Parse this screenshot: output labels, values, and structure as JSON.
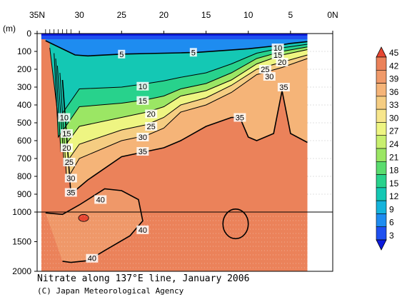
{
  "chart_data": {
    "type": "heatmap",
    "title": "Nitrate along 137°E line, January 2006",
    "credit": "(C) Japan Meteorological Agency",
    "ylabel": "(m)",
    "x_ticks": [
      "35N",
      "30",
      "25",
      "20",
      "15",
      "10",
      "5",
      "0N"
    ],
    "x_tick_values": [
      35,
      30,
      25,
      20,
      15,
      10,
      5,
      0
    ],
    "y_ticks_upper": [
      "0",
      "100",
      "200",
      "300",
      "400",
      "500",
      "600",
      "700",
      "800",
      "900",
      "1000"
    ],
    "y_ticks_upper_values": [
      0,
      100,
      200,
      300,
      400,
      500,
      600,
      700,
      800,
      900,
      1000
    ],
    "y_ticks_lower": [
      "1500",
      "2000"
    ],
    "y_ticks_lower_values": [
      1500,
      2000
    ],
    "xlim": [
      35,
      0
    ],
    "ylim": [
      0,
      2000
    ],
    "data_extent_lat": [
      34.5,
      3
    ],
    "colorbar_labels": [
      "45",
      "42",
      "39",
      "36",
      "33",
      "30",
      "27",
      "24",
      "21",
      "18",
      "15",
      "12",
      "9",
      "6",
      "3"
    ],
    "colorbar_values": [
      45,
      42,
      39,
      36,
      33,
      30,
      27,
      24,
      21,
      18,
      15,
      12,
      9,
      6,
      3
    ],
    "colors": {
      "c0": "#0c1adc",
      "c3": "#1e50f0",
      "c6": "#1e8cf0",
      "c9": "#14b4dc",
      "c12": "#14c8b4",
      "c15": "#28d28c",
      "c18": "#5adc6e",
      "c21": "#9be664",
      "c24": "#c8ef6e",
      "c27": "#eef582",
      "c30": "#f7e68c",
      "c33": "#f5cd82",
      "c36": "#f5b478",
      "c39": "#f09a6a",
      "c42": "#eb825a",
      "c45": "#e64632",
      "frame": "#000000",
      "background": "#ffffff"
    },
    "contours": [
      {
        "level": 5,
        "label": "5",
        "points": [
          [
            34,
            40
          ],
          [
            30.5,
            120
          ],
          [
            29,
            125
          ],
          [
            25,
            115
          ],
          [
            22,
            112
          ],
          [
            20,
            110
          ],
          [
            18,
            108
          ],
          [
            16,
            105
          ],
          [
            13,
            95
          ],
          [
            10,
            85
          ],
          [
            7,
            70
          ],
          [
            5,
            55
          ],
          [
            3,
            45
          ]
        ]
      },
      {
        "level": 10,
        "label": "10",
        "points": [
          [
            33.5,
            80
          ],
          [
            32.5,
            480
          ],
          [
            30,
            310
          ],
          [
            25,
            300
          ],
          [
            22,
            280
          ],
          [
            20,
            265
          ],
          [
            18,
            245
          ],
          [
            15,
            220
          ],
          [
            12,
            170
          ],
          [
            9,
            110
          ],
          [
            6,
            80
          ],
          [
            3,
            60
          ]
        ]
      },
      {
        "level": 15,
        "label": "15",
        "points": [
          [
            33,
            110
          ],
          [
            32.5,
            580
          ],
          [
            30,
            410
          ],
          [
            25,
            390
          ],
          [
            22,
            370
          ],
          [
            20,
            350
          ],
          [
            18,
            310
          ],
          [
            15,
            280
          ],
          [
            12,
            220
          ],
          [
            9,
            140
          ],
          [
            6,
            100
          ],
          [
            3,
            75
          ]
        ]
      },
      {
        "level": 20,
        "label": "20",
        "points": [
          [
            32.8,
            140
          ],
          [
            32.2,
            660
          ],
          [
            30,
            520
          ],
          [
            25,
            470
          ],
          [
            22,
            440
          ],
          [
            20,
            410
          ],
          [
            18,
            350
          ],
          [
            15,
            320
          ],
          [
            12,
            260
          ],
          [
            9,
            170
          ],
          [
            6,
            120
          ],
          [
            3,
            90
          ]
        ]
      },
      {
        "level": 25,
        "label": "25",
        "points": [
          [
            32.6,
            180
          ],
          [
            31.8,
            740
          ],
          [
            30,
            620
          ],
          [
            25,
            540
          ],
          [
            22,
            510
          ],
          [
            20,
            470
          ],
          [
            18,
            400
          ],
          [
            15,
            360
          ],
          [
            12,
            290
          ],
          [
            9,
            200
          ],
          [
            6,
            160
          ],
          [
            3,
            120
          ]
        ]
      },
      {
        "level": 30,
        "label": "30",
        "points": [
          [
            32.3,
            220
          ],
          [
            31.5,
            820
          ],
          [
            30,
            700
          ],
          [
            25,
            600
          ],
          [
            22,
            570
          ],
          [
            20,
            530
          ],
          [
            18,
            440
          ],
          [
            15,
            400
          ],
          [
            12,
            330
          ],
          [
            9,
            230
          ],
          [
            6,
            190
          ],
          [
            3,
            140
          ]
        ]
      },
      {
        "level": 35,
        "label": "35",
        "points": [
          [
            32,
            260
          ],
          [
            31,
            900
          ],
          [
            29,
            820
          ],
          [
            25,
            690
          ],
          [
            22,
            660
          ],
          [
            20,
            640
          ],
          [
            18,
            600
          ],
          [
            15,
            520
          ],
          [
            12,
            470
          ],
          [
            11,
            470
          ],
          [
            10,
            580
          ],
          [
            9,
            600
          ],
          [
            7,
            560
          ],
          [
            6,
            320
          ],
          [
            5,
            560
          ],
          [
            3,
            610
          ]
        ]
      },
      {
        "level": 40,
        "label": "40",
        "points": [
          [
            34,
            1015
          ],
          [
            32,
            1040
          ],
          [
            30,
            960
          ],
          [
            29,
            930
          ],
          [
            27,
            870
          ],
          [
            25,
            880
          ],
          [
            23,
            930
          ],
          [
            22.5,
            1150
          ],
          [
            24,
            1400
          ],
          [
            27,
            1650
          ],
          [
            29,
            1820
          ],
          [
            31,
            1850
          ],
          [
            32,
            1830
          ]
        ]
      }
    ],
    "contour_labels": [
      {
        "text": "5",
        "lat": 25,
        "depth": 115
      },
      {
        "text": "5",
        "lat": 16.5,
        "depth": 105
      },
      {
        "text": "10",
        "lat": 22.5,
        "depth": 295
      },
      {
        "text": "15",
        "lat": 22.5,
        "depth": 375
      },
      {
        "text": "20",
        "lat": 21.5,
        "depth": 450
      },
      {
        "text": "25",
        "lat": 21.5,
        "depth": 520
      },
      {
        "text": "30",
        "lat": 22.5,
        "depth": 580
      },
      {
        "text": "35",
        "lat": 22.5,
        "depth": 660
      },
      {
        "text": "10",
        "lat": 31.8,
        "depth": 470
      },
      {
        "text": "15",
        "lat": 31.5,
        "depth": 560
      },
      {
        "text": "20",
        "lat": 31.5,
        "depth": 640
      },
      {
        "text": "25",
        "lat": 31.2,
        "depth": 720
      },
      {
        "text": "30",
        "lat": 31,
        "depth": 810
      },
      {
        "text": "35",
        "lat": 31,
        "depth": 890
      },
      {
        "text": "40",
        "lat": 27.5,
        "depth": 930
      },
      {
        "text": "40",
        "lat": 22.5,
        "depth": 1300
      },
      {
        "text": "40",
        "lat": 28.5,
        "depth": 1780
      },
      {
        "text": "35",
        "lat": 11,
        "depth": 470
      },
      {
        "text": "35",
        "lat": 5.8,
        "depth": 300
      },
      {
        "text": "10",
        "lat": 6.5,
        "depth": 80
      },
      {
        "text": "15",
        "lat": 6.5,
        "depth": 120
      },
      {
        "text": "20",
        "lat": 6,
        "depth": 160
      },
      {
        "text": "25",
        "lat": 8,
        "depth": 200
      },
      {
        "text": "30",
        "lat": 7.5,
        "depth": 240
      }
    ],
    "closed_contours": [
      {
        "level": 40,
        "center_lat": 11.5,
        "center_depth": 1200,
        "radius_lat": 1.5,
        "radius_depth": 250
      },
      {
        "level": 45,
        "center_lat": 29.5,
        "center_depth": 1100,
        "radius_lat": 0.6,
        "radius_depth": 60
      }
    ]
  }
}
